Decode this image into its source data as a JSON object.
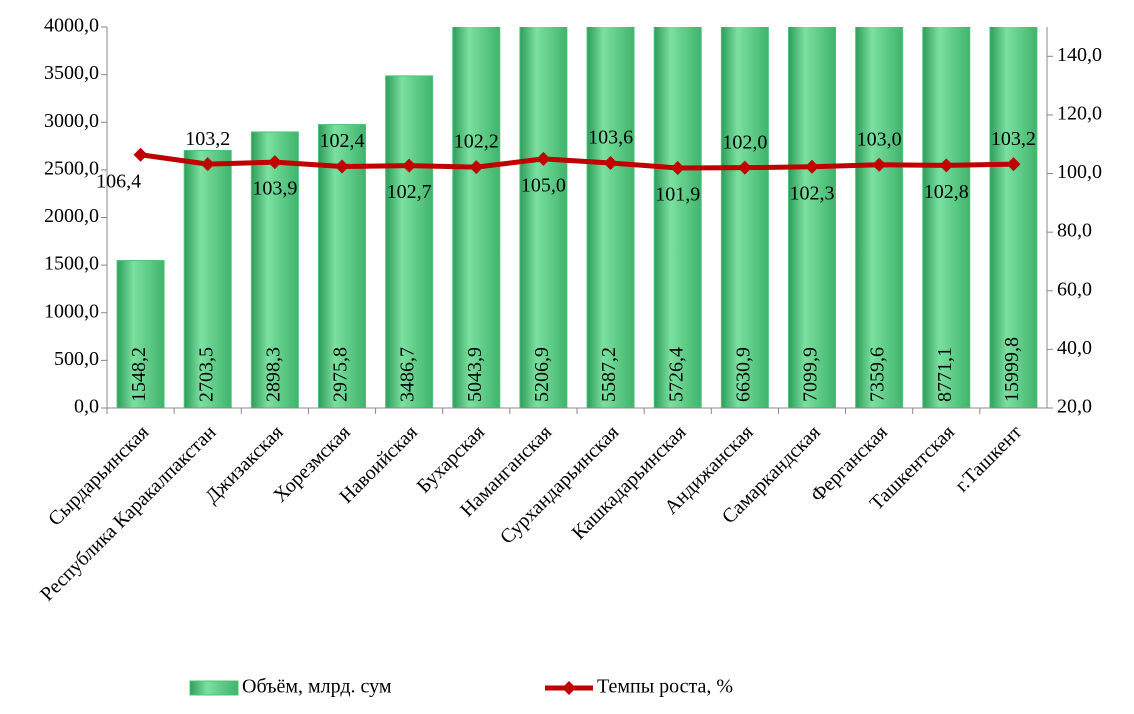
{
  "chart_data": {
    "type": "bar-line",
    "categories": [
      "Сырдарьинская",
      "Республика Каракалпакстан",
      "Джизакская",
      "Хорезмская",
      "Навоийская",
      "Бухарская",
      "Наманганская",
      "Сурхандарьинская",
      "Кашкадарьинская",
      "Андижанская",
      "Самаркандская",
      "Ферганская",
      "Ташкентская",
      "г.Ташкент"
    ],
    "series": [
      {
        "name": "Объём, млрд. сум",
        "type": "bar",
        "color": "#4cc47a",
        "values": [
          1548.2,
          2703.5,
          2898.3,
          2975.8,
          3486.7,
          5043.9,
          5206.9,
          5587.2,
          5726.4,
          6630.9,
          7099.9,
          7359.6,
          8771.1,
          15999.8
        ],
        "value_labels": [
          "1548,2",
          "2703,5",
          "2898,3",
          "2975,8",
          "3486,7",
          "5043,9",
          "5206,9",
          "5587,2",
          "5726,4",
          "6630,9",
          "7099,9",
          "7359,6",
          "8771,1",
          "15999,8"
        ]
      },
      {
        "name": "Темпы роста, %",
        "type": "line",
        "axis": "y2",
        "color": "#c00000",
        "values": [
          106.4,
          103.2,
          103.9,
          102.4,
          102.7,
          102.2,
          105.0,
          103.6,
          101.9,
          102.0,
          102.3,
          103.0,
          102.8,
          103.2
        ],
        "value_labels": [
          "106,4",
          "103,2",
          "103,9",
          "102,4",
          "102,7",
          "102,2",
          "105,0",
          "103,6",
          "101,9",
          "102,0",
          "102,3",
          "103,0",
          "102,8",
          "103,2"
        ]
      }
    ],
    "ylim": [
      0,
      4000
    ],
    "yticks": [
      {
        "value": 0,
        "label": "0,0"
      },
      {
        "value": 500,
        "label": "500,0"
      },
      {
        "value": 1000,
        "label": "1000,0"
      },
      {
        "value": 1500,
        "label": "1500,0"
      },
      {
        "value": 2000,
        "label": "2000,0"
      },
      {
        "value": 2500,
        "label": "2500,0"
      },
      {
        "value": 3000,
        "label": "3000,0"
      },
      {
        "value": 3500,
        "label": "3500,0"
      },
      {
        "value": 4000,
        "label": "4000,0"
      }
    ],
    "y2lim": [
      20,
      150
    ],
    "y2ticks": [
      {
        "value": 20,
        "label": "20,0"
      },
      {
        "value": 40,
        "label": "40,0"
      },
      {
        "value": 60,
        "label": "60,0"
      },
      {
        "value": 80,
        "label": "80,0"
      },
      {
        "value": 100,
        "label": "100,0"
      },
      {
        "value": 120,
        "label": "120,0"
      },
      {
        "value": 140,
        "label": "140,0"
      }
    ],
    "legend": "bottom"
  }
}
